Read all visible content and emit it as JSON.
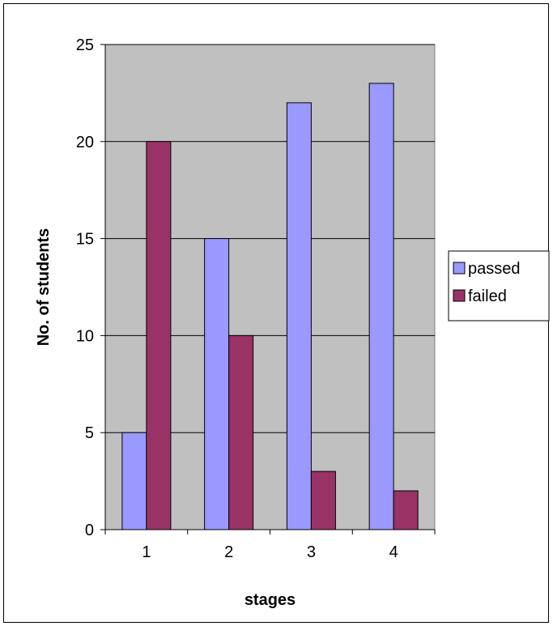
{
  "chart_data": {
    "type": "bar",
    "title": "",
    "xlabel": "stages",
    "ylabel": "No. of students",
    "categories": [
      "1",
      "2",
      "3",
      "4"
    ],
    "series": [
      {
        "name": "passed",
        "values": [
          5,
          15,
          22,
          23
        ],
        "color": "#9999ff"
      },
      {
        "name": "failed",
        "values": [
          20,
          10,
          3,
          2
        ],
        "color": "#993366"
      }
    ],
    "ylim": [
      0,
      25
    ],
    "yticks": [
      0,
      5,
      10,
      15,
      20,
      25
    ],
    "grid": true,
    "plot_background": "#c0c0c0",
    "legend_position": "right"
  }
}
